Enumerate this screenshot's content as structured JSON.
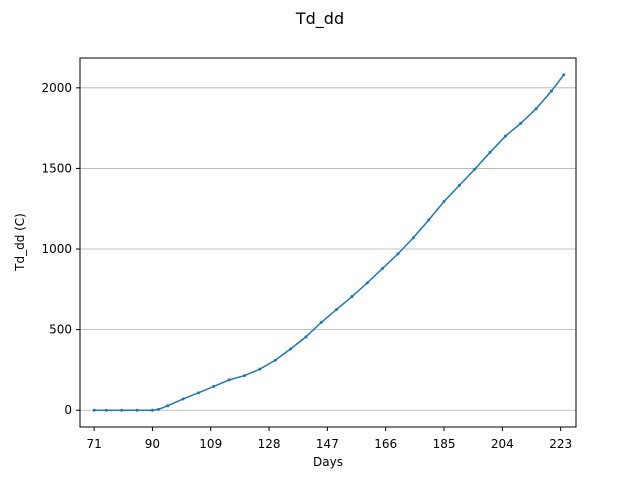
{
  "chart_data": {
    "type": "line",
    "title": "Td_dd",
    "xlabel": "Days",
    "ylabel": "Td_dd (C)",
    "xlim": [
      66.4,
      228
    ],
    "ylim": [
      -104,
      2185
    ],
    "xticks": [
      71,
      90,
      109,
      128,
      147,
      166,
      185,
      204,
      223
    ],
    "yticks": [
      0,
      500,
      1000,
      1500,
      2000
    ],
    "grid": "horizontal",
    "legend": "none",
    "color": "#1f77b4",
    "series": [
      {
        "x": [
          71,
          75,
          80,
          85,
          90,
          92,
          95,
          100,
          105,
          110,
          115,
          120,
          125,
          130,
          135,
          140,
          145,
          150,
          155,
          160,
          165,
          170,
          175,
          180,
          185,
          190,
          195,
          200,
          205,
          210,
          215,
          220,
          224
        ],
        "values": [
          0,
          0,
          0,
          0,
          0,
          5,
          28,
          70,
          108,
          148,
          188,
          215,
          255,
          310,
          380,
          455,
          545,
          625,
          705,
          790,
          880,
          970,
          1070,
          1180,
          1295,
          1395,
          1495,
          1600,
          1700,
          1780,
          1870,
          1980,
          2080
        ]
      }
    ]
  }
}
